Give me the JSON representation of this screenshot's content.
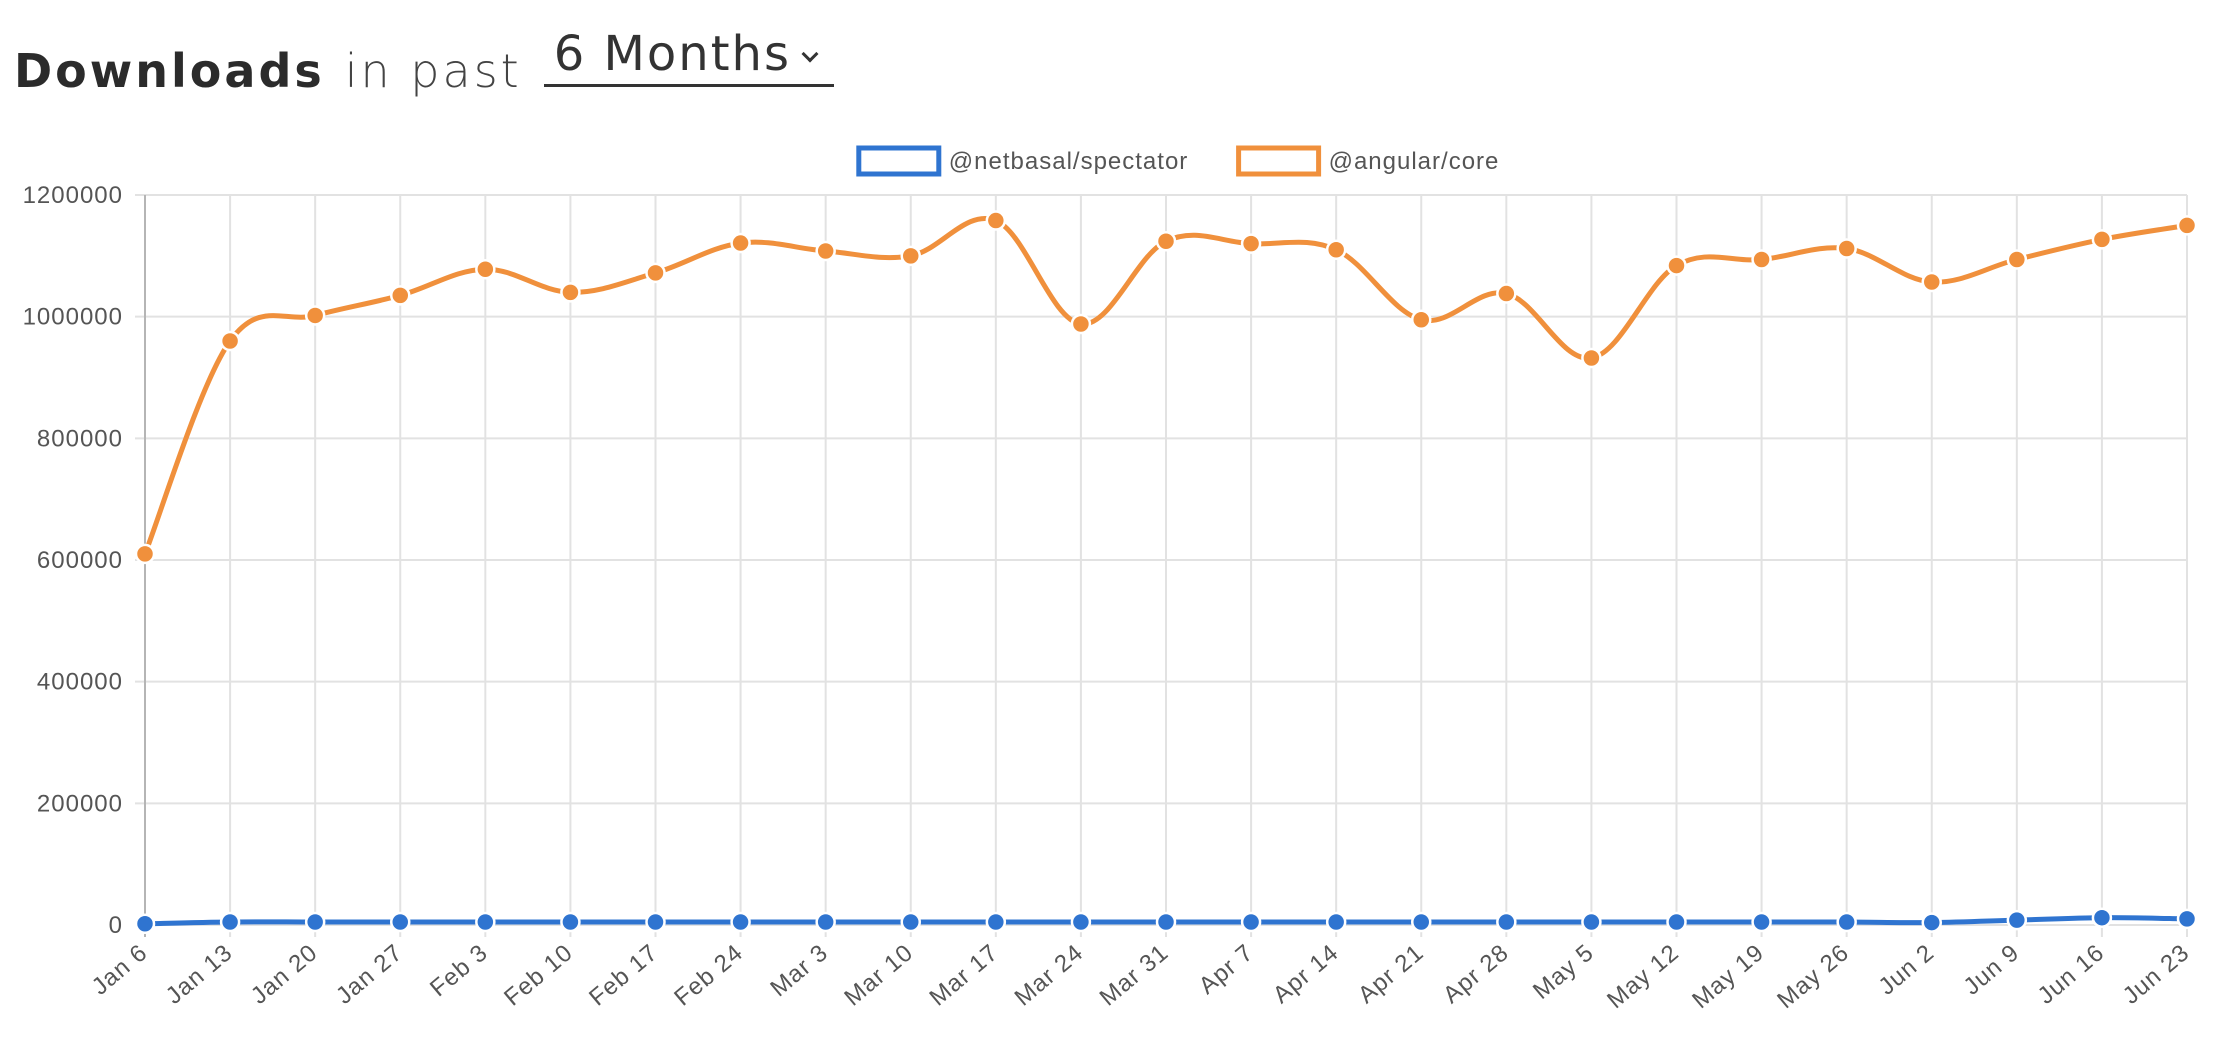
{
  "header": {
    "title": "Downloads",
    "subtitle": "in past",
    "period_value": "6 Months"
  },
  "chart_data": {
    "type": "line",
    "title": "",
    "xlabel": "",
    "ylabel": "",
    "categories": [
      "Jan 6",
      "Jan 13",
      "Jan 20",
      "Jan 27",
      "Feb 3",
      "Feb 10",
      "Feb 17",
      "Feb 24",
      "Mar 3",
      "Mar 10",
      "Mar 17",
      "Mar 24",
      "Mar 31",
      "Apr 7",
      "Apr 14",
      "Apr 21",
      "Apr 28",
      "May 5",
      "May 12",
      "May 19",
      "May 26",
      "Jun 2",
      "Jun 9",
      "Jun 16",
      "Jun 23"
    ],
    "ylim": [
      0,
      1200000
    ],
    "yticks": [
      "0",
      "200000",
      "400000",
      "600000",
      "800000",
      "1000000",
      "1200000"
    ],
    "grid": true,
    "legend_position": "top",
    "series": [
      {
        "name": "@netbasal/spectator",
        "color": "#2f74d0",
        "values": [
          2000,
          5000,
          5000,
          5000,
          5000,
          5000,
          5000,
          5000,
          5000,
          5000,
          5000,
          5000,
          5000,
          5000,
          5000,
          5000,
          5000,
          5000,
          5000,
          5000,
          5000,
          4000,
          8000,
          12000,
          10000
        ]
      },
      {
        "name": "@angular/core",
        "color": "#f0903c",
        "values": [
          610000,
          960000,
          1002000,
          1035000,
          1078000,
          1040000,
          1072000,
          1121000,
          1108000,
          1100000,
          1158000,
          988000,
          1124000,
          1120000,
          1110000,
          995000,
          1038000,
          932000,
          1084000,
          1094000,
          1112000,
          1057000,
          1094000,
          1127000,
          1150000
        ]
      }
    ]
  }
}
